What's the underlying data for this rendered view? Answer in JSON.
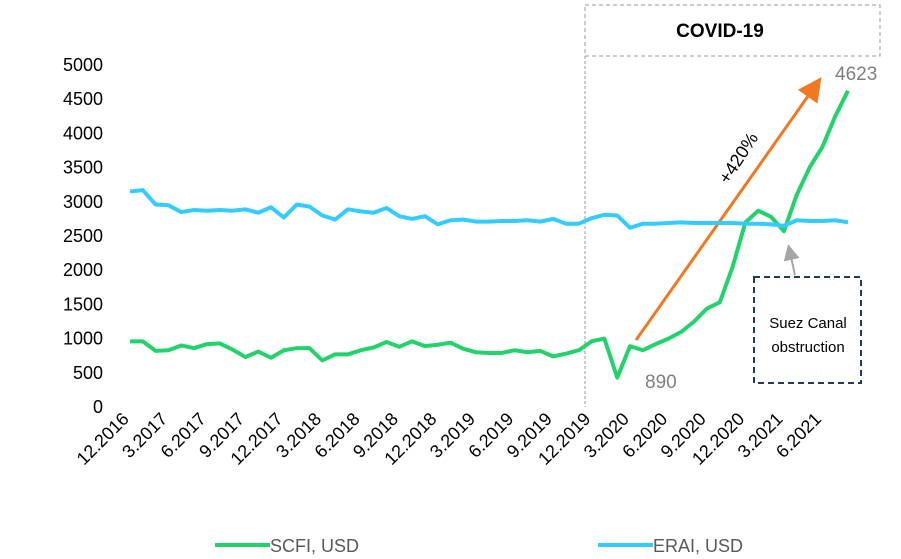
{
  "chart_data": {
    "type": "line",
    "categories": [
      "12.2016",
      null,
      null,
      "3.2017",
      null,
      null,
      "6.2017",
      null,
      null,
      "9.2017",
      null,
      null,
      "12.2017",
      null,
      null,
      "3.2018",
      null,
      null,
      "6.2018",
      null,
      null,
      "9.2018",
      null,
      null,
      "12.2018",
      null,
      null,
      "3.2019",
      null,
      null,
      "6.2019",
      null,
      null,
      "9.2019",
      null,
      null,
      "12.2019",
      null,
      null,
      "3.2020",
      null,
      null,
      "6.2020",
      null,
      null,
      "9.2020",
      null,
      null,
      "12.2020",
      null,
      null,
      "3.2021",
      null,
      null,
      "6.2021",
      null,
      null
    ],
    "series": [
      {
        "name": "SCFI, USD",
        "color": "#22d36b",
        "values": [
          960,
          960,
          820,
          830,
          900,
          860,
          920,
          930,
          840,
          730,
          810,
          720,
          830,
          860,
          860,
          680,
          770,
          770,
          830,
          870,
          950,
          880,
          960,
          890,
          910,
          940,
          850,
          800,
          790,
          790,
          830,
          800,
          820,
          740,
          780,
          830,
          960,
          1000,
          430,
          890,
          830,
          920,
          1000,
          1100,
          1250,
          1440,
          1530,
          2050,
          2700,
          2870,
          2780,
          2570,
          3100,
          3500,
          3800,
          4250,
          4623
        ]
      },
      {
        "name": "ERAI, USD",
        "color": "#33ccff",
        "values": [
          3150,
          3170,
          2960,
          2950,
          2850,
          2880,
          2870,
          2880,
          2870,
          2890,
          2840,
          2920,
          2770,
          2960,
          2930,
          2800,
          2740,
          2890,
          2860,
          2840,
          2910,
          2790,
          2750,
          2790,
          2670,
          2730,
          2740,
          2710,
          2710,
          2720,
          2720,
          2730,
          2710,
          2750,
          2680,
          2680,
          2760,
          2810,
          2800,
          2620,
          2680,
          2680,
          2690,
          2700,
          2690,
          2690,
          2690,
          2690,
          2680,
          2680,
          2670,
          2650,
          2730,
          2720,
          2720,
          2730,
          2700
        ]
      }
    ],
    "ylim": [
      0,
      5000
    ],
    "yticks": [
      0,
      500,
      1000,
      1500,
      2000,
      2500,
      3000,
      3500,
      4000,
      4500,
      5000
    ],
    "annotations": {
      "covid": "COVID-19",
      "growth": "+420%",
      "suez": [
        "Suez Canal",
        "obstruction"
      ]
    },
    "legend": "bottom"
  }
}
